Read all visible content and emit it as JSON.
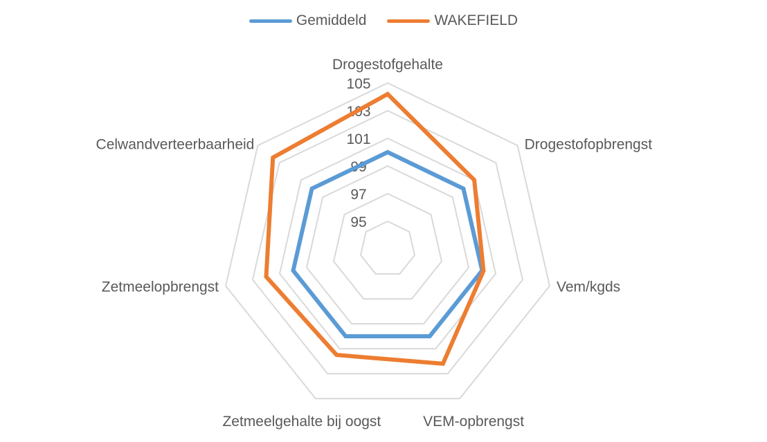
{
  "chart_data": {
    "type": "radar",
    "categories": [
      "Drogestofgehalte",
      "Drogestofopbrengst",
      "Vem/kgds",
      "VEM-opbrengst",
      "Zetmeelgehalte bij oogst",
      "Zetmeelopbrengst",
      "Celwandverteerbaarheid"
    ],
    "series": [
      {
        "name": "Gemiddeld",
        "color": "#5b9bd5",
        "values": [
          100,
          100,
          100,
          100,
          100,
          100,
          100
        ]
      },
      {
        "name": "WAKEFIELD",
        "color": "#ed7d31",
        "values": [
          104.2,
          101.0,
          100.1,
          102.2,
          101.5,
          102.0,
          103.6
        ]
      }
    ],
    "rticks": [
      95,
      97,
      99,
      101,
      103,
      105
    ],
    "rlim": [
      93,
      105
    ],
    "grid": true,
    "legend_position": "top"
  }
}
